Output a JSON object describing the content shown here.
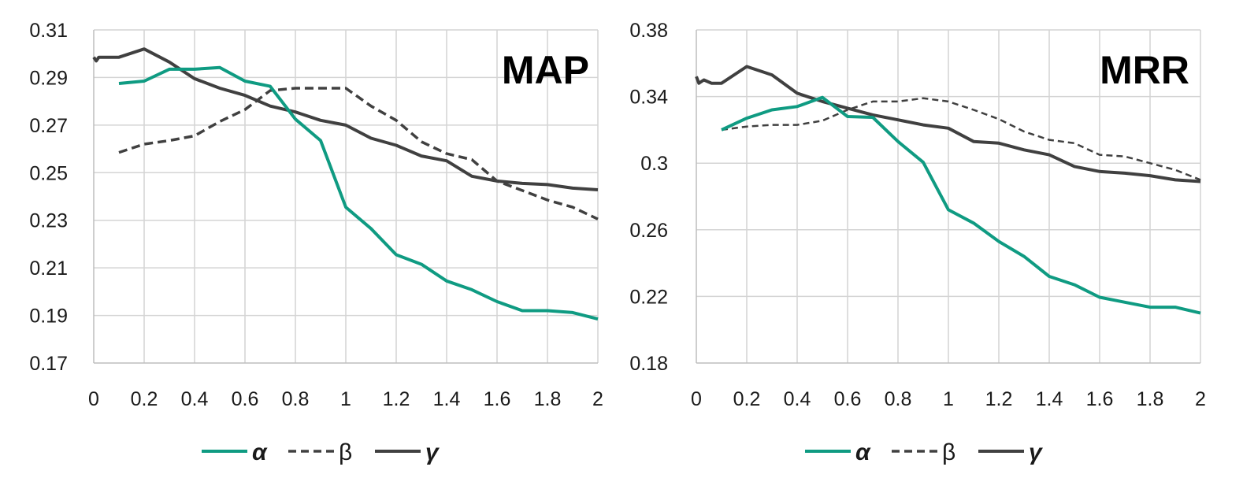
{
  "colors": {
    "alpha": "#0f9b82",
    "beta": "#404040",
    "gamma": "#404040",
    "grid": "#d4d4d4",
    "axis": "#bdbdbd"
  },
  "legend_labels": {
    "alpha": "α",
    "beta": "β",
    "gamma": "γ"
  },
  "chart_data": [
    {
      "type": "line",
      "title": "MAP",
      "xlabel": "",
      "ylabel": "",
      "xlim": [
        0,
        2
      ],
      "ylim": [
        0.17,
        0.31
      ],
      "x_ticks": [
        "0",
        "0.2",
        "0.4",
        "0.6",
        "0.8",
        "1",
        "1.2",
        "1.4",
        "1.6",
        "1.8",
        "2"
      ],
      "y_ticks": [
        "0.31",
        "0.29",
        "0.27",
        "0.25",
        "0.23",
        "0.21",
        "0.19",
        "0.17"
      ],
      "grid": true,
      "legend": "bottom",
      "series": [
        {
          "name": "α",
          "style": "solid",
          "points": [
            [
              0.1,
              0.2875
            ],
            [
              0.2,
              0.2885
            ],
            [
              0.3,
              0.2935
            ],
            [
              0.4,
              0.2935
            ],
            [
              0.5,
              0.2942
            ],
            [
              0.6,
              0.2885
            ],
            [
              0.7,
              0.2863
            ],
            [
              0.8,
              0.2725
            ],
            [
              0.9,
              0.2635
            ],
            [
              1.0,
              0.2355
            ],
            [
              1.1,
              0.2265
            ],
            [
              1.2,
              0.2155
            ],
            [
              1.3,
              0.2115
            ],
            [
              1.4,
              0.2045
            ],
            [
              1.5,
              0.2008
            ],
            [
              1.6,
              0.1958
            ],
            [
              1.7,
              0.192
            ],
            [
              1.8,
              0.192
            ],
            [
              1.9,
              0.1912
            ],
            [
              2.0,
              0.1885
            ]
          ]
        },
        {
          "name": "β",
          "style": "dashed",
          "points": [
            [
              0.1,
              0.2585
            ],
            [
              0.2,
              0.262
            ],
            [
              0.3,
              0.2635
            ],
            [
              0.4,
              0.2655
            ],
            [
              0.5,
              0.2715
            ],
            [
              0.6,
              0.2765
            ],
            [
              0.7,
              0.2845
            ],
            [
              0.8,
              0.2855
            ],
            [
              0.9,
              0.2855
            ],
            [
              1.0,
              0.2855
            ],
            [
              1.1,
              0.278
            ],
            [
              1.2,
              0.272
            ],
            [
              1.3,
              0.263
            ],
            [
              1.4,
              0.258
            ],
            [
              1.5,
              0.2555
            ],
            [
              1.6,
              0.2465
            ],
            [
              1.7,
              0.2425
            ],
            [
              1.8,
              0.2385
            ],
            [
              1.9,
              0.2355
            ],
            [
              2.0,
              0.2305
            ]
          ]
        },
        {
          "name": "γ",
          "style": "solid",
          "points": [
            [
              0.0,
              0.2985
            ],
            [
              0.01,
              0.297
            ],
            [
              0.02,
              0.2985
            ],
            [
              0.1,
              0.2985
            ],
            [
              0.2,
              0.302
            ],
            [
              0.3,
              0.2965
            ],
            [
              0.4,
              0.2895
            ],
            [
              0.5,
              0.2855
            ],
            [
              0.6,
              0.2825
            ],
            [
              0.7,
              0.278
            ],
            [
              0.8,
              0.2755
            ],
            [
              0.9,
              0.272
            ],
            [
              1.0,
              0.27
            ],
            [
              1.1,
              0.2645
            ],
            [
              1.2,
              0.2615
            ],
            [
              1.3,
              0.257
            ],
            [
              1.4,
              0.255
            ],
            [
              1.5,
              0.2485
            ],
            [
              1.6,
              0.2465
            ],
            [
              1.7,
              0.2455
            ],
            [
              1.8,
              0.245
            ],
            [
              1.9,
              0.2435
            ],
            [
              2.0,
              0.2428
            ]
          ]
        }
      ]
    },
    {
      "type": "line",
      "title": "MRR",
      "xlabel": "",
      "ylabel": "",
      "xlim": [
        0,
        2
      ],
      "ylim": [
        0.18,
        0.38
      ],
      "x_ticks": [
        "0",
        "0.2",
        "0.4",
        "0.6",
        "0.8",
        "1",
        "1.2",
        "1.4",
        "1.6",
        "1.8",
        "2"
      ],
      "y_ticks": [
        "0.38",
        "0.34",
        "0.3",
        "0.26",
        "0.22",
        "0.18"
      ],
      "grid": true,
      "legend": "bottom",
      "series": [
        {
          "name": "α",
          "style": "solid",
          "points": [
            [
              0.1,
              0.32
            ],
            [
              0.2,
              0.327
            ],
            [
              0.3,
              0.332
            ],
            [
              0.4,
              0.334
            ],
            [
              0.5,
              0.3395
            ],
            [
              0.6,
              0.328
            ],
            [
              0.7,
              0.3275
            ],
            [
              0.8,
              0.313
            ],
            [
              0.9,
              0.3005
            ],
            [
              1.0,
              0.272
            ],
            [
              1.1,
              0.264
            ],
            [
              1.2,
              0.253
            ],
            [
              1.3,
              0.244
            ],
            [
              1.4,
              0.232
            ],
            [
              1.5,
              0.227
            ],
            [
              1.6,
              0.2195
            ],
            [
              1.7,
              0.2165
            ],
            [
              1.8,
              0.2135
            ],
            [
              1.9,
              0.2135
            ],
            [
              2.0,
              0.21
            ]
          ]
        },
        {
          "name": "β",
          "style": "dashed",
          "points": [
            [
              0.1,
              0.32
            ],
            [
              0.2,
              0.322
            ],
            [
              0.3,
              0.323
            ],
            [
              0.4,
              0.323
            ],
            [
              0.5,
              0.3255
            ],
            [
              0.6,
              0.332
            ],
            [
              0.7,
              0.337
            ],
            [
              0.8,
              0.337
            ],
            [
              0.9,
              0.339
            ],
            [
              1.0,
              0.337
            ],
            [
              1.1,
              0.332
            ],
            [
              1.2,
              0.3265
            ],
            [
              1.3,
              0.319
            ],
            [
              1.4,
              0.314
            ],
            [
              1.5,
              0.312
            ],
            [
              1.6,
              0.305
            ],
            [
              1.7,
              0.304
            ],
            [
              1.8,
              0.3
            ],
            [
              1.9,
              0.296
            ],
            [
              2.0,
              0.29
            ]
          ]
        },
        {
          "name": "γ",
          "style": "solid",
          "points": [
            [
              0.0,
              0.352
            ],
            [
              0.01,
              0.348
            ],
            [
              0.03,
              0.35
            ],
            [
              0.06,
              0.348
            ],
            [
              0.1,
              0.348
            ],
            [
              0.2,
              0.358
            ],
            [
              0.3,
              0.353
            ],
            [
              0.4,
              0.342
            ],
            [
              0.5,
              0.337
            ],
            [
              0.6,
              0.333
            ],
            [
              0.7,
              0.329
            ],
            [
              0.8,
              0.326
            ],
            [
              0.9,
              0.323
            ],
            [
              1.0,
              0.321
            ],
            [
              1.1,
              0.313
            ],
            [
              1.2,
              0.312
            ],
            [
              1.3,
              0.308
            ],
            [
              1.4,
              0.305
            ],
            [
              1.5,
              0.298
            ],
            [
              1.6,
              0.295
            ],
            [
              1.7,
              0.294
            ],
            [
              1.8,
              0.2925
            ],
            [
              1.9,
              0.29
            ],
            [
              2.0,
              0.289
            ]
          ]
        }
      ]
    }
  ]
}
